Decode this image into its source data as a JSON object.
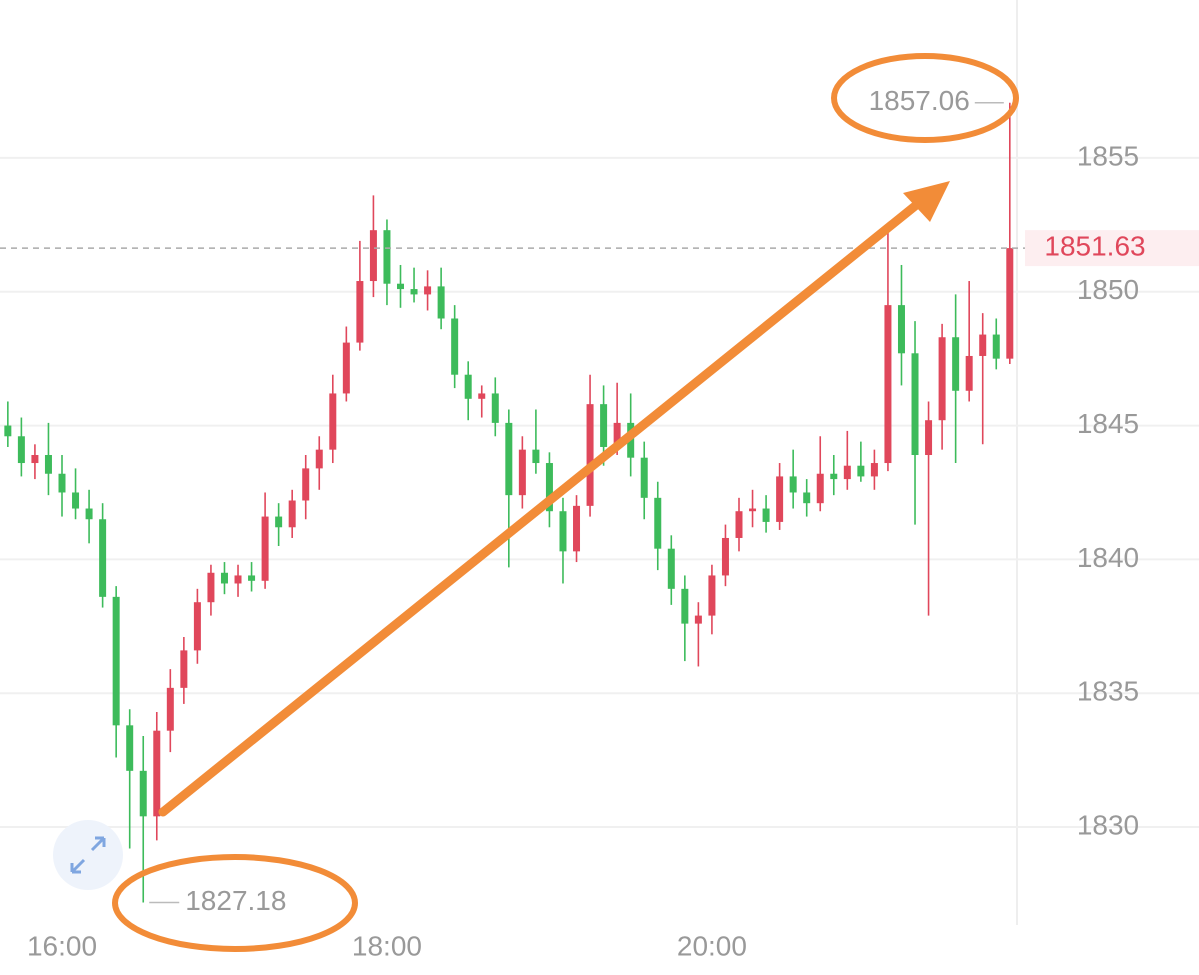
{
  "chart_data": {
    "type": "candlestick",
    "categories": [
      null,
      null,
      null,
      null,
      "16:00",
      null,
      null,
      null,
      null,
      null,
      null,
      null,
      null,
      null,
      null,
      null,
      null,
      null,
      null,
      null,
      null,
      null,
      null,
      null,
      null,
      null,
      null,
      null,
      "18:00",
      null,
      null,
      null,
      null,
      null,
      null,
      null,
      null,
      null,
      null,
      null,
      null,
      null,
      null,
      null,
      null,
      null,
      null,
      null,
      null,
      null,
      null,
      null,
      "20:00",
      null,
      null,
      null,
      null,
      null,
      null,
      null,
      null,
      null,
      null,
      null,
      null,
      null,
      null,
      null,
      null,
      null,
      null,
      null,
      null,
      null,
      null
    ],
    "open": [
      1845.0,
      1844.6,
      1843.6,
      1843.9,
      1843.2,
      1842.5,
      1841.9,
      1841.5,
      1838.6,
      1833.8,
      1832.1,
      1830.4,
      1833.6,
      1835.2,
      1836.6,
      1838.4,
      1839.5,
      1839.1,
      1839.4,
      1839.2,
      1841.6,
      1841.2,
      1842.2,
      1843.4,
      1844.1,
      1846.2,
      1848.1,
      1850.4,
      1852.3,
      1850.3,
      1850.1,
      1849.9,
      1850.2,
      1849.0,
      1846.9,
      1846.0,
      1846.2,
      1845.1,
      1842.4,
      1844.1,
      1843.6,
      1841.8,
      1840.3,
      1842.0,
      1845.8,
      1844.2,
      1845.1,
      1843.8,
      1842.3,
      1840.4,
      1838.9,
      1837.6,
      1837.9,
      1839.4,
      1840.8,
      1841.8,
      1841.9,
      1841.4,
      1843.1,
      1842.5,
      1842.1,
      1843.2,
      1843.0,
      1843.5,
      1843.1,
      1843.6,
      1849.5,
      1847.7,
      1843.9,
      1845.2,
      1848.3,
      1846.3,
      1847.6,
      1848.4,
      1847.5
    ],
    "high": [
      1845.9,
      1845.3,
      1844.3,
      1845.1,
      1843.9,
      1843.4,
      1842.6,
      1842.1,
      1839.0,
      1834.4,
      1833.4,
      1834.3,
      1835.9,
      1837.1,
      1838.9,
      1839.8,
      1839.9,
      1839.8,
      1839.9,
      1842.5,
      1842.1,
      1842.6,
      1843.9,
      1844.6,
      1846.9,
      1848.7,
      1851.9,
      1853.6,
      1852.7,
      1851.0,
      1850.9,
      1850.8,
      1850.9,
      1849.5,
      1847.4,
      1846.5,
      1846.8,
      1845.6,
      1844.6,
      1845.6,
      1844.0,
      1842.3,
      1842.4,
      1846.9,
      1846.5,
      1846.6,
      1846.2,
      1844.4,
      1842.9,
      1840.9,
      1839.4,
      1838.4,
      1839.8,
      1841.3,
      1842.3,
      1842.6,
      1842.4,
      1843.6,
      1844.1,
      1843.0,
      1844.6,
      1843.9,
      1844.8,
      1844.4,
      1844.1,
      1852.3,
      1851.0,
      1848.9,
      1845.9,
      1848.8,
      1849.9,
      1850.4,
      1849.2,
      1849.0,
      1857.06
    ],
    "low": [
      1844.2,
      1843.1,
      1843.0,
      1842.4,
      1841.6,
      1841.5,
      1840.6,
      1838.2,
      1832.6,
      1829.2,
      1827.18,
      1829.5,
      1832.8,
      1834.6,
      1836.1,
      1837.9,
      1838.7,
      1838.6,
      1838.8,
      1838.9,
      1840.5,
      1840.8,
      1841.5,
      1842.6,
      1843.6,
      1845.9,
      1847.8,
      1849.8,
      1849.5,
      1849.4,
      1849.6,
      1849.3,
      1848.6,
      1846.4,
      1845.2,
      1845.3,
      1844.6,
      1839.7,
      1841.9,
      1843.2,
      1841.2,
      1839.1,
      1839.9,
      1841.6,
      1843.5,
      1843.9,
      1843.1,
      1841.5,
      1839.6,
      1838.3,
      1836.2,
      1836.0,
      1837.2,
      1839.0,
      1840.3,
      1841.2,
      1841.0,
      1841.1,
      1841.9,
      1841.6,
      1841.8,
      1842.4,
      1842.6,
      1842.9,
      1842.6,
      1843.3,
      1846.5,
      1841.3,
      1837.9,
      1844.1,
      1843.6,
      1845.9,
      1844.3,
      1847.1,
      1847.3
    ],
    "close": [
      1844.6,
      1843.6,
      1843.9,
      1843.2,
      1842.5,
      1841.9,
      1841.5,
      1838.6,
      1833.8,
      1832.1,
      1830.4,
      1833.6,
      1835.2,
      1836.6,
      1838.4,
      1839.5,
      1839.1,
      1839.4,
      1839.2,
      1841.6,
      1841.2,
      1842.2,
      1843.4,
      1844.1,
      1846.2,
      1848.1,
      1850.4,
      1852.3,
      1850.3,
      1850.1,
      1849.9,
      1850.2,
      1849.0,
      1846.9,
      1846.0,
      1846.2,
      1845.1,
      1842.4,
      1844.1,
      1843.6,
      1841.8,
      1840.3,
      1842.0,
      1845.8,
      1844.2,
      1845.1,
      1843.8,
      1842.3,
      1840.4,
      1838.9,
      1837.6,
      1837.9,
      1839.4,
      1840.8,
      1841.8,
      1841.9,
      1841.4,
      1843.1,
      1842.5,
      1842.1,
      1843.2,
      1843.0,
      1843.5,
      1843.1,
      1843.6,
      1849.5,
      1847.7,
      1843.9,
      1845.2,
      1848.3,
      1846.3,
      1847.6,
      1848.4,
      1847.5,
      1851.63
    ],
    "up_color": "#e0475b",
    "down_color": "#3dbb5b",
    "ylim": [
      1826.34,
      1860.9
    ],
    "yticks": [
      1830,
      1835,
      1840,
      1845,
      1850,
      1855
    ],
    "grid": true
  }
}
